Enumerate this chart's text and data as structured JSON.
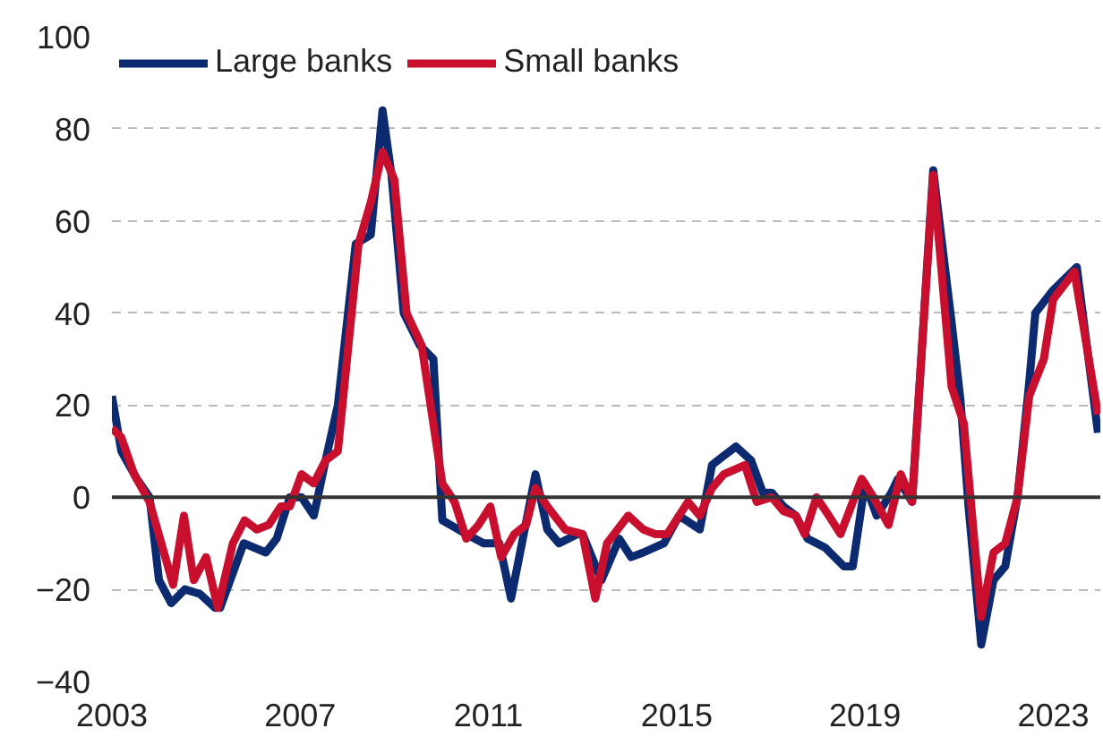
{
  "chart_data": {
    "type": "line",
    "xlim": [
      2003,
      2024
    ],
    "xticks": [
      2003,
      2007,
      2011,
      2015,
      2019,
      2023
    ],
    "ylim": [
      -40,
      100
    ],
    "yticks": [
      -40,
      -20,
      0,
      20,
      40,
      60,
      80,
      100
    ],
    "grid": "y",
    "legend": "top left",
    "marker": "none",
    "line_style": "solid",
    "ref_lines": [
      {
        "axis": "y",
        "value": 0,
        "label": null,
        "color": "#333333",
        "line_style": "solid"
      }
    ],
    "series": [
      {
        "name": "Large banks",
        "color": "#0b2a6f",
        "x": [
          2003.0,
          2003.2,
          2003.53,
          2003.8,
          2004.0,
          2004.26,
          2004.55,
          2004.87,
          2005.19,
          2005.3,
          2005.8,
          2006.27,
          2006.5,
          2006.78,
          2007.03,
          2007.29,
          2007.54,
          2007.8,
          2008.18,
          2008.5,
          2008.75,
          2008.94,
          2009.2,
          2009.54,
          2009.83,
          2010.02,
          2010.53,
          2010.9,
          2011.23,
          2011.48,
          2012.0,
          2012.25,
          2012.5,
          2012.89,
          2013.0,
          2013.4,
          2013.78,
          2014.03,
          2014.29,
          2014.73,
          2015.05,
          2015.49,
          2015.75,
          2016.0,
          2016.26,
          2016.58,
          2016.83,
          2017.02,
          2017.27,
          2017.53,
          2017.78,
          2018.16,
          2018.55,
          2018.74,
          2019.0,
          2019.25,
          2019.56,
          2019.7,
          2020.0,
          2020.45,
          2020.84,
          2021.03,
          2021.2,
          2021.47,
          2021.73,
          2021.98,
          2022.24,
          2022.49,
          2022.62,
          2023.0,
          2023.5,
          2023.95
        ],
        "values": [
          22,
          10,
          4,
          0,
          -18,
          -23,
          -20,
          -21,
          -24,
          -24,
          -10,
          -12,
          -9,
          0,
          0,
          -4,
          8,
          20,
          55,
          57,
          84,
          70,
          40,
          33,
          30,
          -5,
          -8,
          -10,
          -10,
          -22,
          5,
          -7,
          -10,
          -8,
          -8,
          -18,
          -9,
          -13,
          -12,
          -10,
          -4,
          -7,
          7,
          9,
          11,
          8,
          1,
          1,
          -2,
          -4,
          -9,
          -11,
          -15,
          -15,
          3,
          -4,
          1,
          4,
          -1,
          71,
          38,
          21,
          -2,
          -32,
          -18,
          -15,
          0,
          25,
          40,
          45,
          50,
          14
        ]
      },
      {
        "name": "Small banks",
        "color": "#c8102e",
        "x": [
          2003.0,
          2003.2,
          2003.47,
          2003.8,
          2004.3,
          2004.53,
          2004.74,
          2005.0,
          2005.25,
          2005.57,
          2005.82,
          2006.08,
          2006.33,
          2006.59,
          2006.78,
          2007.03,
          2007.29,
          2007.54,
          2007.8,
          2008.24,
          2008.5,
          2008.75,
          2009.0,
          2009.26,
          2009.58,
          2010.02,
          2010.28,
          2010.53,
          2010.79,
          2011.04,
          2011.27,
          2011.55,
          2011.8,
          2012.0,
          2012.25,
          2012.63,
          2013.0,
          2013.27,
          2013.52,
          2013.97,
          2014.29,
          2014.54,
          2014.8,
          2015.24,
          2015.49,
          2015.75,
          2016.0,
          2016.45,
          2016.7,
          2017.02,
          2017.27,
          2017.53,
          2017.72,
          2017.97,
          2018.23,
          2018.48,
          2018.93,
          2019.18,
          2019.5,
          2019.76,
          2020.0,
          2020.45,
          2020.84,
          2021.1,
          2021.47,
          2021.73,
          2021.98,
          2022.24,
          2022.49,
          2022.8,
          2023.0,
          2023.45,
          2023.95
        ],
        "values": [
          15,
          13,
          5,
          -1,
          -19,
          -4,
          -18,
          -13,
          -24,
          -10,
          -5,
          -7,
          -6,
          -2,
          -2,
          5,
          3,
          8,
          10,
          55,
          64,
          75,
          69,
          40,
          33,
          3,
          -1,
          -9,
          -6,
          -2,
          -13,
          -8,
          -6,
          2,
          -2,
          -7,
          -8,
          -22,
          -10,
          -4,
          -7,
          -8,
          -8,
          -1,
          -4,
          2,
          5,
          7,
          -1,
          0,
          -3,
          -4,
          -8,
          0,
          -4,
          -8,
          4,
          0,
          -6,
          5,
          -1,
          70,
          24,
          16,
          -26,
          -12,
          -10,
          0,
          22,
          30,
          43,
          49,
          18
        ]
      }
    ]
  }
}
